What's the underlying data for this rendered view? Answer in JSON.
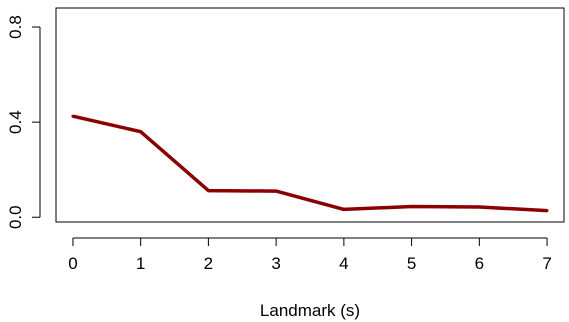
{
  "chart_data": {
    "type": "line",
    "title": "",
    "xlabel": "Landmark (s)",
    "ylabel": "",
    "x": [
      0,
      1,
      2,
      3,
      4,
      5,
      6,
      7
    ],
    "series": [
      {
        "values": [
          0.425,
          0.36,
          0.112,
          0.11,
          0.033,
          0.045,
          0.043,
          0.028
        ],
        "color": "#8b0000"
      }
    ],
    "xlim": [
      -0.25,
      7.25
    ],
    "ylim": [
      -0.02,
      0.88
    ],
    "xticks": [
      0,
      1,
      2,
      3,
      4,
      5,
      6,
      7
    ],
    "yticks": [
      0.0,
      0.4,
      0.8
    ],
    "xtick_labels": [
      "0",
      "1",
      "2",
      "3",
      "4",
      "5",
      "6",
      "7"
    ],
    "ytick_labels": [
      "0.0",
      "0.4",
      "0.8"
    ],
    "grid": false,
    "legend": "none",
    "frame": "box"
  }
}
